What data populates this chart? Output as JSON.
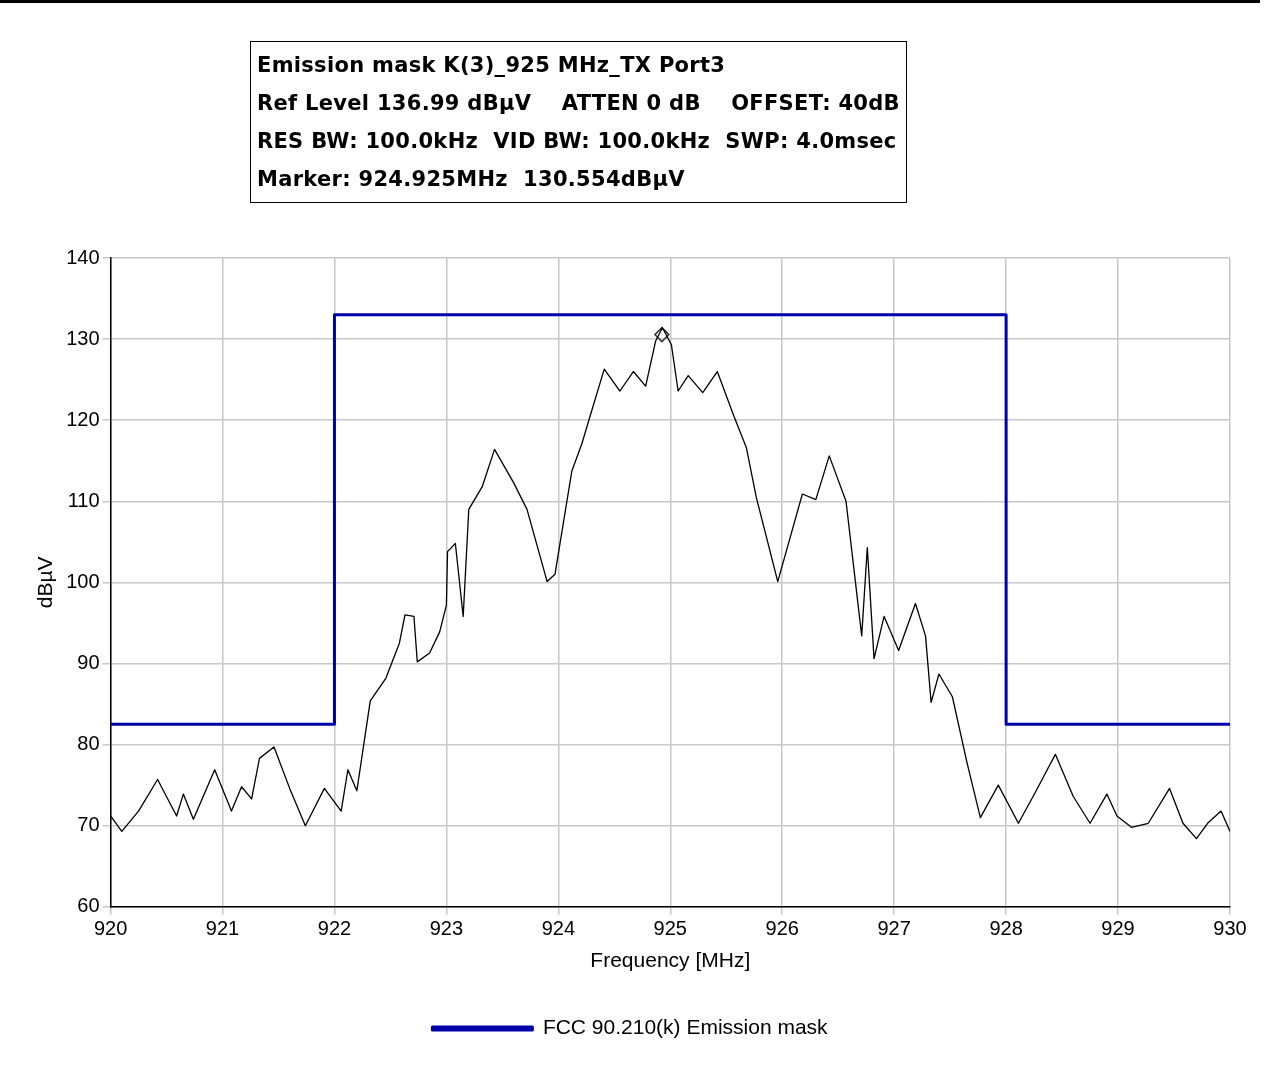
{
  "chart_data": {
    "type": "line",
    "title": "Emission mask K(3)_925 MHz_TX Port3",
    "xlabel": "Frequency [MHz]",
    "ylabel": "dBµV",
    "annotations": [
      "Ref Level 136.99 dBµV    ATTEN 0 dB    OFFSET: 40dB",
      "RES BW: 100.0kHz  VID BW: 100.0kHz  SWP: 4.0msec",
      "Marker: 924.925MHz  130.554dBµV"
    ],
    "xlim": [
      920,
      930
    ],
    "xticks": [
      920,
      921,
      922,
      923,
      924,
      925,
      926,
      927,
      928,
      929,
      930
    ],
    "ylim": [
      60,
      140
    ],
    "yticks": [
      60,
      70,
      80,
      90,
      100,
      110,
      120,
      130,
      140
    ],
    "grid": true,
    "legend": "bottom",
    "line_style": "solid",
    "series": [
      {
        "color": "#000000",
        "x": [
          920.0,
          920.1,
          920.25,
          920.42,
          920.59,
          920.65,
          920.74,
          920.93,
          921.08,
          921.17,
          921.26,
          921.33,
          921.46,
          921.6,
          921.74,
          921.91,
          922.06,
          922.12,
          922.2,
          922.32,
          922.46,
          922.58,
          922.63,
          922.71,
          922.74,
          922.85,
          922.94,
          923.0,
          923.01,
          923.08,
          923.15,
          923.2,
          923.32,
          923.43,
          923.6,
          923.72,
          923.9,
          923.97,
          924.12,
          924.21,
          924.29,
          924.41,
          924.55,
          924.67,
          924.78,
          924.87,
          924.93,
          925.01,
          925.07,
          925.16,
          925.29,
          925.42,
          925.56,
          925.68,
          925.77,
          925.96,
          926.18,
          926.3,
          926.42,
          926.57,
          926.71,
          926.76,
          926.82,
          926.91,
          927.04,
          927.19,
          927.28,
          927.33,
          927.4,
          927.52,
          927.65,
          927.77,
          927.93,
          928.11,
          928.26,
          928.44,
          928.6,
          928.75,
          928.9,
          928.99,
          929.12,
          929.27,
          929.46,
          929.58,
          929.7,
          929.8,
          929.92,
          930.0
        ],
        "values": [
          71.2,
          69.3,
          71.8,
          75.7,
          71.2,
          73.9,
          70.8,
          76.9,
          71.8,
          74.8,
          73.3,
          78.3,
          79.7,
          74.6,
          70,
          74.6,
          71.8,
          76.9,
          74.3,
          85.4,
          88.2,
          92.5,
          96,
          95.8,
          90.2,
          91.3,
          93.9,
          97.2,
          103.8,
          104.8,
          95.8,
          109,
          111.8,
          116.4,
          112.3,
          109,
          100.1,
          101,
          113.7,
          117.1,
          120.8,
          126.3,
          123.6,
          126,
          124.2,
          129.8,
          131.4,
          129.3,
          123.6,
          125.5,
          123.4,
          126,
          120.8,
          116.6,
          110.4,
          100.1,
          110.9,
          110.2,
          115.6,
          110,
          93.4,
          104.3,
          90.6,
          95.8,
          91.6,
          97.4,
          93.4,
          85.2,
          88.7,
          85.9,
          77.8,
          71,
          75,
          70.3,
          74.1,
          78.8,
          73.6,
          70.3,
          73.9,
          71.2,
          69.8,
          70.3,
          74.6,
          70.3,
          68.4,
          70.3,
          71.8,
          69.3
        ]
      },
      {
        "type": "scatter",
        "marker": "diamond",
        "color": "#333333",
        "x": [
          924.925
        ],
        "values": [
          130.554
        ]
      },
      {
        "name": "FCC 90.210(k) Emission mask",
        "color": "#0000a8",
        "x": [
          920,
          922,
          922,
          928,
          928,
          930
        ],
        "values": [
          82.5,
          82.5,
          133,
          133,
          82.5,
          82.5
        ]
      }
    ]
  }
}
